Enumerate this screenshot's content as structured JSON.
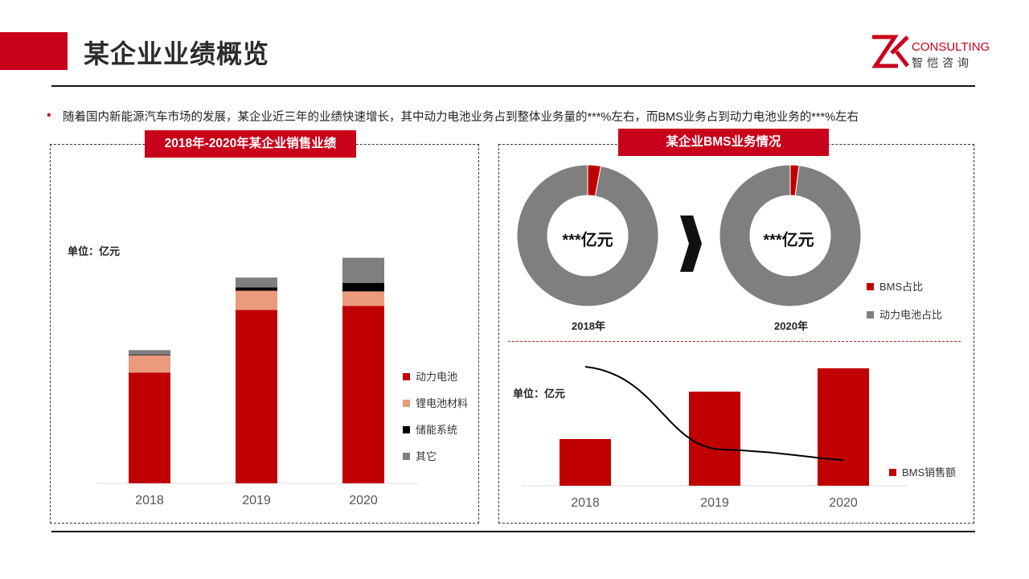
{
  "header": {
    "title": "某企业业绩概览",
    "logo_brand": "CONSULTING",
    "logo_cn": "智恺咨询",
    "accent_color": "#c8001a"
  },
  "bullet": {
    "text": "随着国内新能源汽车市场的发展，某企业近三年的业绩快速增长，其中动力电池业务占到整体业务量的***%左右，而BMS业务占到动力电池业务的***%左右"
  },
  "left_panel": {
    "tag": "2018年-2020年某企业销售业绩",
    "unit": "单位：亿元"
  },
  "right_panel": {
    "tag": "某企业BMS业务情况",
    "donut_center_2018": "***亿元",
    "donut_center_2020": "***亿元",
    "donut_year_2018": "2018年",
    "donut_year_2020": "2020年",
    "unit": "单位：亿元"
  },
  "chart_data": [
    {
      "type": "bar",
      "stacked": true,
      "categories": [
        "2018",
        "2019",
        "2020"
      ],
      "series": [
        {
          "name": "动力电池",
          "color": "#c00000",
          "values": [
            168,
            263,
            269
          ]
        },
        {
          "name": "锂电池材料",
          "color": "#ec9a7c",
          "values": [
            26,
            29,
            22
          ]
        },
        {
          "name": "储能系统",
          "color": "#000000",
          "values": [
            1,
            5,
            13
          ]
        },
        {
          "name": "其它",
          "color": "#7f7f7f",
          "values": [
            7,
            15,
            38
          ]
        }
      ],
      "legend": "right",
      "grid": false
    },
    {
      "type": "pie",
      "donut": true,
      "label": "2018年",
      "slices": [
        {
          "name": "BMS占比",
          "color": "#c00000",
          "value": 3
        },
        {
          "name": "动力电池占比",
          "color": "#7f7f7f",
          "value": 97
        }
      ]
    },
    {
      "type": "pie",
      "donut": true,
      "label": "2020年",
      "slices": [
        {
          "name": "BMS占比",
          "color": "#c00000",
          "value": 2
        },
        {
          "name": "动力电池占比",
          "color": "#7f7f7f",
          "value": 98
        }
      ]
    },
    {
      "type": "bar",
      "categories": [
        "2018",
        "2019",
        "2020"
      ],
      "series": [
        {
          "name": "BMS销售额",
          "color": "#c00000",
          "values": [
            58,
            117,
            146
          ]
        }
      ],
      "trend_line": [
        148,
        47,
        32
      ],
      "legend": "right",
      "grid": false
    }
  ]
}
